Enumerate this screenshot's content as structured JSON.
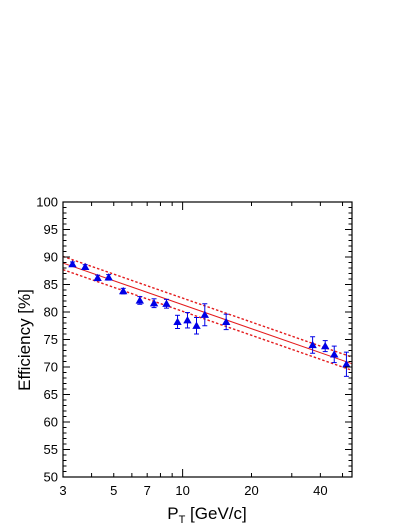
{
  "chart_data": {
    "type": "scatter",
    "title": "",
    "xlabel": "P",
    "xlabel_subscript": "T",
    "xlabel_unit": " [GeV/c]",
    "ylabel": "Efficiency [%]",
    "x_scale": "log",
    "xlim": [
      3,
      55
    ],
    "ylim": [
      50,
      100
    ],
    "x_ticks": [
      3,
      5,
      7,
      10,
      20,
      40
    ],
    "y_ticks": [
      50,
      55,
      60,
      65,
      70,
      75,
      80,
      85,
      90,
      95,
      100
    ],
    "grid": false,
    "legend": "none",
    "series": [
      {
        "marker": "triangle",
        "color": "#0000e6",
        "points": [
          {
            "x": 3.3,
            "y": 88.7,
            "err": 0.4
          },
          {
            "x": 3.75,
            "y": 88.2,
            "err": 0.4
          },
          {
            "x": 4.25,
            "y": 86.2,
            "err": 0.5
          },
          {
            "x": 4.75,
            "y": 86.3,
            "err": 0.5
          },
          {
            "x": 5.5,
            "y": 83.8,
            "err": 0.5
          },
          {
            "x": 6.5,
            "y": 82.1,
            "err": 0.7
          },
          {
            "x": 7.5,
            "y": 81.6,
            "err": 0.8
          },
          {
            "x": 8.5,
            "y": 81.5,
            "err": 0.8
          },
          {
            "x": 9.5,
            "y": 78.2,
            "err": 1.2
          },
          {
            "x": 10.5,
            "y": 78.5,
            "err": 1.4
          },
          {
            "x": 11.5,
            "y": 77.5,
            "err": 1.5
          },
          {
            "x": 12.5,
            "y": 79.5,
            "err": 2.0
          },
          {
            "x": 15.5,
            "y": 78.2,
            "err": 1.4
          },
          {
            "x": 37,
            "y": 74.0,
            "err": 1.5
          },
          {
            "x": 42,
            "y": 73.8,
            "err": 1.0
          },
          {
            "x": 46,
            "y": 72.3,
            "err": 1.5
          },
          {
            "x": 52,
            "y": 70.5,
            "err": 2.2
          }
        ]
      }
    ],
    "fit": {
      "color": "#e41a1c",
      "central": [
        [
          3,
          88.9
        ],
        [
          55,
          70.6
        ]
      ],
      "upper": [
        [
          3,
          90.1
        ],
        [
          55,
          71.8
        ]
      ],
      "lower": [
        [
          3,
          87.7
        ],
        [
          55,
          69.4
        ]
      ]
    }
  }
}
